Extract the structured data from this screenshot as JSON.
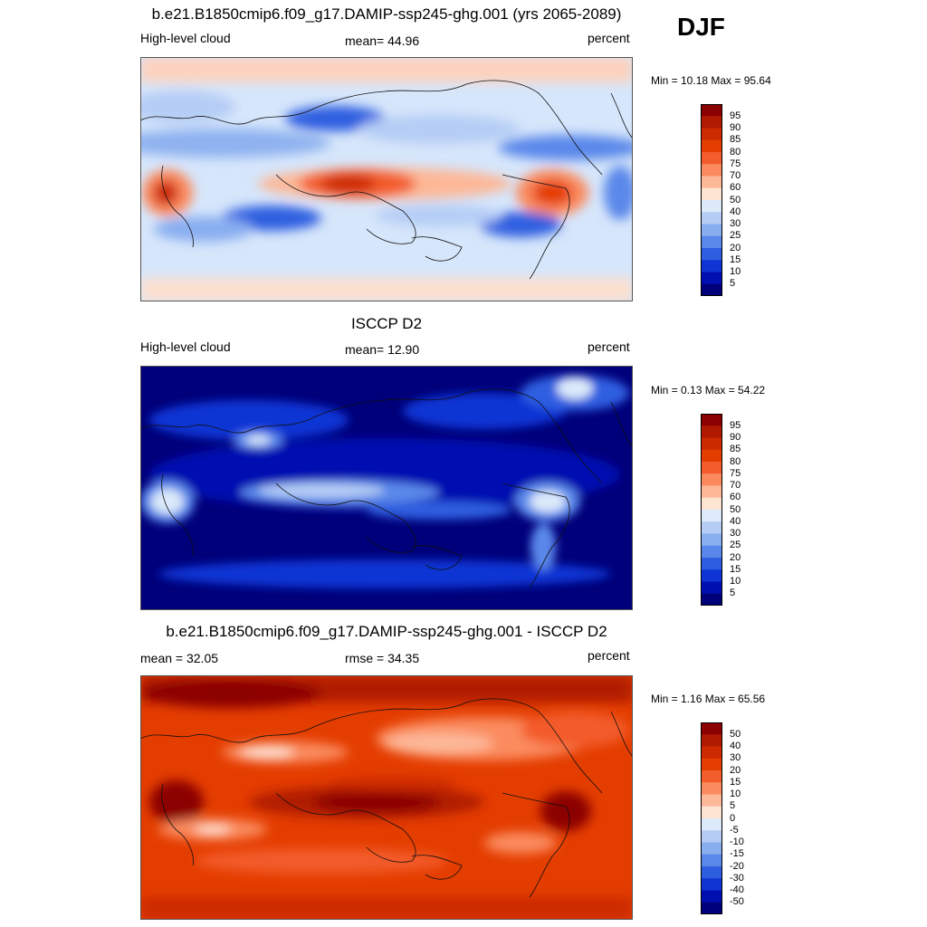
{
  "season": "DJF",
  "panels": [
    {
      "id": "model",
      "title": "b.e21.B1850cmip6.f09_g17.DAMIP-ssp245-ghg.001 (yrs 2065-2089)",
      "left_label": "High-level cloud",
      "center_label": "mean=  44.96",
      "right_label": "percent",
      "minmax": "Min =  10.18 Max =  95.64",
      "colorbar_levels": [
        "95",
        "90",
        "85",
        "80",
        "75",
        "70",
        "60",
        "50",
        "40",
        "30",
        "25",
        "20",
        "15",
        "10",
        "5"
      ]
    },
    {
      "id": "obs",
      "title": "ISCCP D2",
      "left_label": "High-level cloud",
      "center_label": "mean=  12.90",
      "right_label": "percent",
      "minmax": "Min =   0.13 Max =  54.22",
      "colorbar_levels": [
        "95",
        "90",
        "85",
        "80",
        "75",
        "70",
        "60",
        "50",
        "40",
        "30",
        "25",
        "20",
        "15",
        "10",
        "5"
      ]
    },
    {
      "id": "diff",
      "title": "b.e21.B1850cmip6.f09_g17.DAMIP-ssp245-ghg.001 - ISCCP D2",
      "left_label": "mean =  32.05",
      "center_label": "rmse =  34.35",
      "right_label": "percent",
      "minmax": "Min =   1.16 Max =  65.56",
      "colorbar_levels": [
        "50",
        "40",
        "30",
        "20",
        "15",
        "10",
        "5",
        "0",
        "-5",
        "-10",
        "-15",
        "-20",
        "-30",
        "-40",
        "-50"
      ]
    }
  ],
  "colorbar_colors": [
    "#8b0000",
    "#b01a00",
    "#cc2a00",
    "#e43d00",
    "#f35c2c",
    "#fb8b5e",
    "#fdb898",
    "#fde4d3",
    "#dceafa",
    "#b5cdf5",
    "#89aef0",
    "#5a88ea",
    "#2e5ee0",
    "#0f34d4",
    "#0010b0",
    "#00007a"
  ]
}
